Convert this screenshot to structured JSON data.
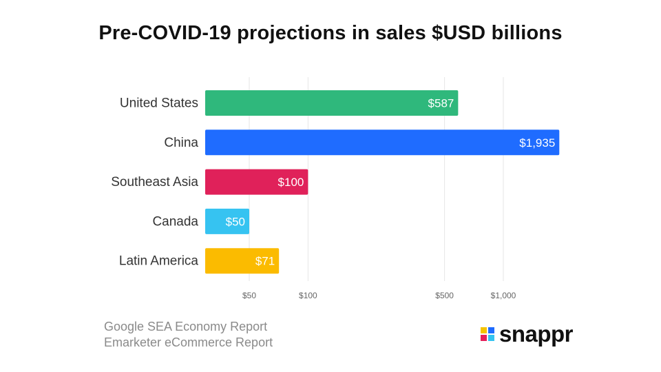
{
  "title": "Pre-COVID-19 projections in sales $USD billions",
  "sources": [
    "Google SEA Economy Report",
    "Emarketer eCommerce Report"
  ],
  "logo": {
    "text": "snappr",
    "mark_colors": [
      "#f5c400",
      "#1e6bff",
      "#e5205a",
      "#33c3f0"
    ]
  },
  "chart_data": {
    "type": "bar",
    "orientation": "horizontal",
    "scale": "log",
    "title": "Pre-COVID-19 projections in sales $USD billions",
    "categories": [
      "United States",
      "China",
      "Southeast Asia",
      "Canada",
      "Latin America"
    ],
    "values": [
      587,
      1935,
      100,
      50,
      71
    ],
    "value_labels": [
      "$587",
      "$1,935",
      "$100",
      "$50",
      "$71"
    ],
    "colors": [
      "#2fb87c",
      "#1f6cff",
      "#e0215a",
      "#36c3f1",
      "#fbbb00"
    ],
    "ticks": [
      50,
      100,
      500,
      1000
    ],
    "tick_labels": [
      "$50",
      "$100",
      "$500",
      "$1,000"
    ],
    "gridlines": true
  }
}
